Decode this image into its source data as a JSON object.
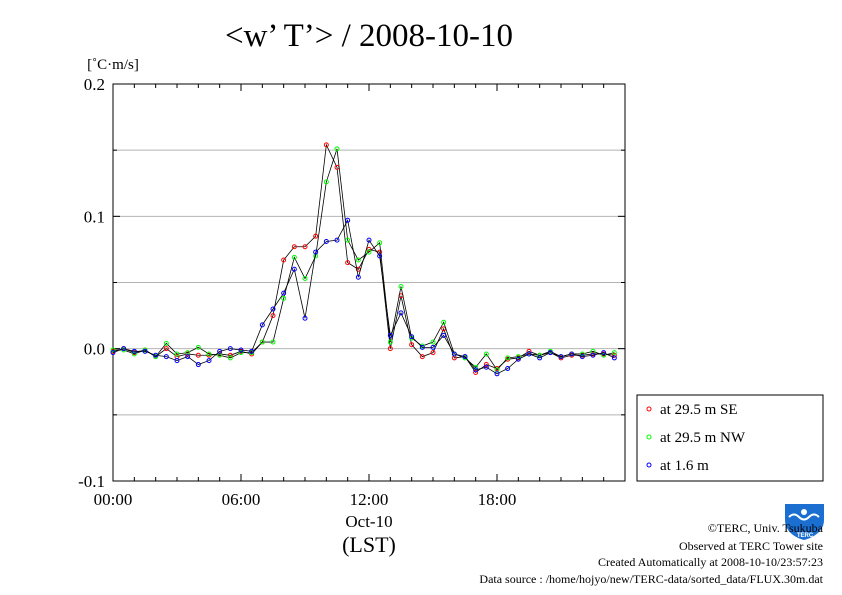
{
  "page": {
    "title": "<w’ T’> / 2008-10-10",
    "unit": "[˚C·m/s]",
    "date_label": "Oct-10",
    "time_zone_label": "(LST)"
  },
  "credits": {
    "line1": "©TERC, Univ. Tsukuba",
    "line2": "Observed at TERC Tower site",
    "line3": "Created Automatically at 2008-10-10/23:57:23",
    "line4": "Data source : /home/hojyo/new/TERC-data/sorted_data/FLUX.30m.dat",
    "logo_text": "TERC"
  },
  "chart_data": {
    "type": "line",
    "title": "<w’ T’> / 2008-10-10",
    "ylabel": "[˚C·m/s]",
    "xlabel": "(LST)",
    "xlim": [
      0,
      24
    ],
    "ylim": [
      -0.1,
      0.2
    ],
    "xticks": [
      0,
      6,
      12,
      18
    ],
    "xtick_labels": [
      "00:00",
      "06:00",
      "12:00",
      "18:00"
    ],
    "yticks": [
      -0.1,
      0.0,
      0.1,
      0.2
    ],
    "ytick_labels": [
      "-0.1",
      "0.0",
      "0.1",
      "0.2"
    ],
    "grid": "horizontal dotted",
    "legend_position": "bottom-right",
    "x": [
      0,
      0.5,
      1,
      1.5,
      2,
      2.5,
      3,
      3.5,
      4,
      4.5,
      5,
      5.5,
      6,
      6.5,
      7,
      7.5,
      8,
      8.5,
      9,
      9.5,
      10,
      10.5,
      11,
      11.5,
      12,
      12.5,
      13,
      13.5,
      14,
      14.5,
      15,
      15.5,
      16,
      16.5,
      17,
      17.5,
      18,
      18.5,
      19,
      19.5,
      20,
      20.5,
      21,
      21.5,
      22,
      22.5,
      23,
      23.5
    ],
    "series": [
      {
        "name": "at 29.5 m SE",
        "color": "#ff0000",
        "values": [
          -0.002,
          0.0,
          -0.003,
          -0.001,
          -0.006,
          0.0,
          -0.006,
          -0.004,
          -0.005,
          -0.005,
          -0.004,
          -0.005,
          -0.002,
          -0.004,
          0.005,
          0.025,
          0.067,
          0.077,
          0.077,
          0.085,
          0.154,
          0.137,
          0.065,
          0.06,
          0.075,
          0.073,
          0.0,
          0.04,
          0.003,
          -0.006,
          -0.003,
          0.015,
          -0.007,
          -0.006,
          -0.018,
          -0.012,
          -0.015,
          -0.008,
          -0.007,
          -0.002,
          -0.005,
          -0.003,
          -0.007,
          -0.005,
          -0.005,
          -0.004,
          -0.004,
          -0.005
        ]
      },
      {
        "name": "at 29.5 m NW",
        "color": "#00ff00",
        "values": [
          -0.001,
          -0.001,
          -0.004,
          -0.001,
          -0.006,
          0.004,
          -0.004,
          -0.003,
          0.001,
          -0.004,
          -0.005,
          -0.007,
          -0.003,
          -0.003,
          0.005,
          0.005,
          0.038,
          0.069,
          0.053,
          0.07,
          0.126,
          0.151,
          0.082,
          0.067,
          0.073,
          0.08,
          0.005,
          0.047,
          0.008,
          0.002,
          0.005,
          0.02,
          -0.004,
          -0.007,
          -0.014,
          -0.004,
          -0.016,
          -0.007,
          -0.006,
          -0.004,
          -0.005,
          -0.002,
          -0.006,
          -0.004,
          -0.004,
          -0.002,
          -0.005,
          -0.003
        ]
      },
      {
        "name": "at 1.6 m",
        "color": "#0000ff",
        "values": [
          -0.003,
          0.0,
          -0.002,
          -0.002,
          -0.005,
          -0.006,
          -0.009,
          -0.006,
          -0.012,
          -0.009,
          -0.002,
          0.0,
          -0.001,
          -0.002,
          0.018,
          0.03,
          0.042,
          0.06,
          0.023,
          0.073,
          0.081,
          0.082,
          0.097,
          0.054,
          0.082,
          0.07,
          0.01,
          0.027,
          0.009,
          0.001,
          0.001,
          0.01,
          -0.004,
          -0.006,
          -0.016,
          -0.014,
          -0.019,
          -0.015,
          -0.008,
          -0.004,
          -0.007,
          -0.003,
          -0.006,
          -0.004,
          -0.006,
          -0.005,
          -0.003,
          -0.007
        ]
      }
    ]
  }
}
